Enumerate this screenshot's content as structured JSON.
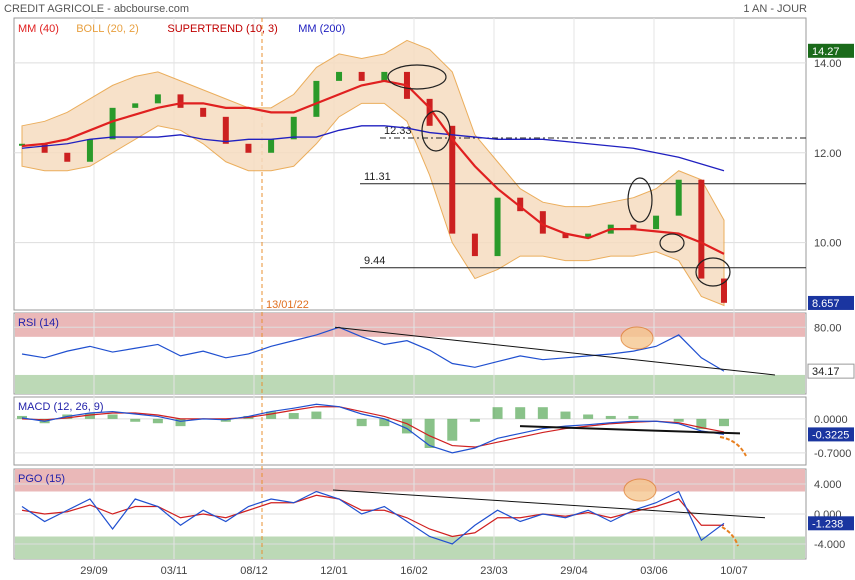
{
  "header": {
    "title": "CREDIT AGRICOLE - abcbourse.com",
    "period": "1 AN - JOUR"
  },
  "legend": [
    {
      "label": "MM (40)",
      "color": "#e02020"
    },
    {
      "label": "BOLL (20, 2)",
      "color": "#e8a040"
    },
    {
      "label": "SUPERTREND (10, 3)",
      "color": "#c00000"
    },
    {
      "label": "MM (200)",
      "color": "#2020c0"
    }
  ],
  "marker_date": "13/01/22",
  "chart_data": [
    {
      "type": "line",
      "title": "",
      "ylim": [
        8.5,
        15.0
      ],
      "yticks": [
        "14.00",
        "12.00",
        "10.00"
      ],
      "x_labels": [
        "29/09",
        "03/11",
        "08/12",
        "12/01",
        "16/02",
        "23/03",
        "29/04",
        "03/06",
        "10/07"
      ],
      "current_price": "14.27",
      "last_price": "8.657",
      "levels": [
        {
          "label": "12.33",
          "value": 12.33
        },
        {
          "label": "11.31",
          "value": 11.31
        },
        {
          "label": "9.44",
          "value": 9.44
        }
      ],
      "series": [
        {
          "name": "MM (40)",
          "color": "#e02020",
          "values": [
            12.15,
            12.2,
            12.3,
            12.5,
            12.7,
            12.85,
            13.0,
            13.1,
            13.1,
            13.0,
            13.0,
            12.9,
            12.9,
            13.1,
            13.3,
            13.5,
            13.6,
            13.5,
            13.0,
            12.3,
            11.7,
            11.2,
            10.8,
            10.4,
            10.2,
            10.1,
            10.3,
            10.3,
            10.25,
            10.2,
            10.0,
            9.75
          ]
        },
        {
          "name": "MM (200)",
          "color": "#2020c0",
          "values": [
            12.1,
            12.15,
            12.2,
            12.3,
            12.35,
            12.35,
            12.35,
            12.4,
            12.3,
            12.25,
            12.3,
            12.3,
            12.35,
            12.35,
            12.5,
            12.6,
            12.6,
            12.55,
            12.45,
            12.4,
            12.35,
            12.3,
            12.3,
            12.3,
            12.25,
            12.2,
            12.15,
            12.1,
            12.0,
            11.9,
            11.75,
            11.6
          ]
        },
        {
          "name": "Cours",
          "color": "#2a8a2a",
          "values": [
            12.2,
            12.0,
            11.8,
            12.3,
            13.0,
            13.1,
            13.3,
            13.0,
            12.8,
            12.2,
            12.0,
            12.3,
            12.8,
            13.6,
            13.8,
            13.6,
            13.8,
            13.2,
            12.6,
            10.2,
            9.7,
            11.0,
            10.7,
            10.2,
            10.1,
            10.2,
            10.4,
            10.3,
            10.6,
            11.4,
            9.2,
            8.66
          ]
        }
      ],
      "bollinger": {
        "upper": [
          12.6,
          12.7,
          12.9,
          13.2,
          13.5,
          13.7,
          13.8,
          13.6,
          13.4,
          13.2,
          13.0,
          13.0,
          13.3,
          13.9,
          14.2,
          14.1,
          14.2,
          14.5,
          14.3,
          13.8,
          12.4,
          11.8,
          11.2,
          10.9,
          10.8,
          10.8,
          10.9,
          11.0,
          11.2,
          11.6,
          11.4,
          10.5
        ],
        "lower": [
          11.7,
          11.6,
          11.6,
          11.7,
          12.0,
          12.3,
          12.6,
          12.5,
          12.2,
          11.8,
          11.6,
          11.6,
          11.7,
          12.2,
          12.8,
          13.1,
          13.1,
          12.7,
          11.5,
          10.0,
          9.2,
          9.4,
          9.7,
          9.7,
          9.6,
          9.6,
          9.7,
          9.7,
          9.8,
          9.6,
          8.8,
          8.6
        ]
      }
    },
    {
      "type": "line",
      "title": "RSI (14)",
      "ylim": [
        10,
        95
      ],
      "yticks": [
        "80.00"
      ],
      "last_value": "34.17",
      "series": [
        {
          "name": "RSI (14)",
          "color": "#2050d0",
          "values": [
            52,
            48,
            55,
            60,
            54,
            58,
            62,
            50,
            55,
            48,
            52,
            60,
            66,
            72,
            80,
            70,
            62,
            66,
            56,
            42,
            38,
            44,
            50,
            46,
            48,
            50,
            52,
            55,
            60,
            72,
            48,
            34
          ]
        }
      ]
    },
    {
      "type": "line",
      "title": "MACD (12, 26, 9)",
      "ylim": [
        -0.95,
        0.45
      ],
      "yticks": [
        "0.0000",
        "-0.7000"
      ],
      "last_value": "-0.3225",
      "series": [
        {
          "name": "MACD",
          "color": "#2050d0",
          "values": [
            0.02,
            -0.05,
            0.05,
            0.12,
            0.15,
            0.1,
            0.05,
            -0.05,
            0.0,
            -0.02,
            0.05,
            0.15,
            0.22,
            0.3,
            0.25,
            0.1,
            0.0,
            -0.2,
            -0.55,
            -0.7,
            -0.6,
            -0.4,
            -0.3,
            -0.2,
            -0.15,
            -0.12,
            -0.08,
            -0.05,
            -0.05,
            -0.1,
            -0.25,
            -0.32
          ]
        },
        {
          "name": "Signal",
          "color": "#d02020",
          "values": [
            0.0,
            -0.02,
            0.02,
            0.08,
            0.12,
            0.12,
            0.08,
            0.0,
            0.0,
            0.0,
            0.03,
            0.1,
            0.18,
            0.25,
            0.25,
            0.15,
            0.05,
            -0.1,
            -0.35,
            -0.55,
            -0.58,
            -0.48,
            -0.38,
            -0.28,
            -0.2,
            -0.15,
            -0.1,
            -0.07,
            -0.05,
            -0.08,
            -0.18,
            -0.27
          ]
        }
      ]
    },
    {
      "type": "line",
      "title": "PGO (15)",
      "ylim": [
        -6,
        6
      ],
      "yticks": [
        "4.000",
        "0.000",
        "-4.000"
      ],
      "last_value": "-1.238",
      "series": [
        {
          "name": "PGO (15)",
          "color": "#2050d0",
          "values": [
            1,
            -1,
            0.5,
            2,
            -2,
            2,
            1,
            -1.5,
            0.5,
            -1,
            1,
            2,
            1.5,
            3,
            2,
            0,
            1,
            -1,
            -3,
            -4,
            -1.5,
            0.5,
            -1,
            0,
            -0.5,
            0.5,
            -1,
            0.5,
            1.5,
            3,
            -3.5,
            -1.24
          ]
        },
        {
          "name": "Signal",
          "color": "#d02020",
          "values": [
            0.5,
            0,
            0.3,
            1.2,
            0,
            1,
            1,
            -0.5,
            0,
            -0.5,
            0.5,
            1.5,
            1.5,
            2.5,
            2,
            0.5,
            0.5,
            -0.5,
            -2,
            -3,
            -2.5,
            -0.5,
            -0.5,
            0,
            -0.3,
            0.2,
            -0.5,
            0.3,
            1,
            2,
            -1.5,
            -1.5
          ]
        }
      ]
    }
  ]
}
